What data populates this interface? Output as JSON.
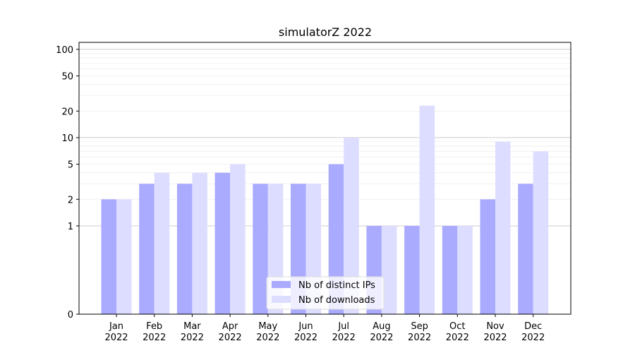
{
  "chart_data": {
    "type": "bar",
    "title": "simulatorZ 2022",
    "xlabel": "",
    "ylabel": "",
    "y_scale": "symlog",
    "ylim": [
      0,
      120
    ],
    "y_ticks": [
      0,
      1,
      2,
      5,
      10,
      20,
      50,
      100
    ],
    "grid": "horizontal",
    "legend_position": "lower-center",
    "categories": [
      [
        "Jan",
        "2022"
      ],
      [
        "Feb",
        "2022"
      ],
      [
        "Mar",
        "2022"
      ],
      [
        "Apr",
        "2022"
      ],
      [
        "May",
        "2022"
      ],
      [
        "Jun",
        "2022"
      ],
      [
        "Jul",
        "2022"
      ],
      [
        "Aug",
        "2022"
      ],
      [
        "Sep",
        "2022"
      ],
      [
        "Oct",
        "2022"
      ],
      [
        "Nov",
        "2022"
      ],
      [
        "Dec",
        "2022"
      ]
    ],
    "series": [
      {
        "name": "Nb of distinct IPs",
        "color": "#aaaaff",
        "values": [
          2,
          3,
          3,
          4,
          3,
          3,
          5,
          1,
          1,
          1,
          2,
          3
        ]
      },
      {
        "name": "Nb of downloads",
        "color": "#ddddff",
        "values": [
          2,
          4,
          4,
          5,
          3,
          3,
          10,
          1,
          23,
          1,
          9,
          7
        ]
      }
    ]
  }
}
